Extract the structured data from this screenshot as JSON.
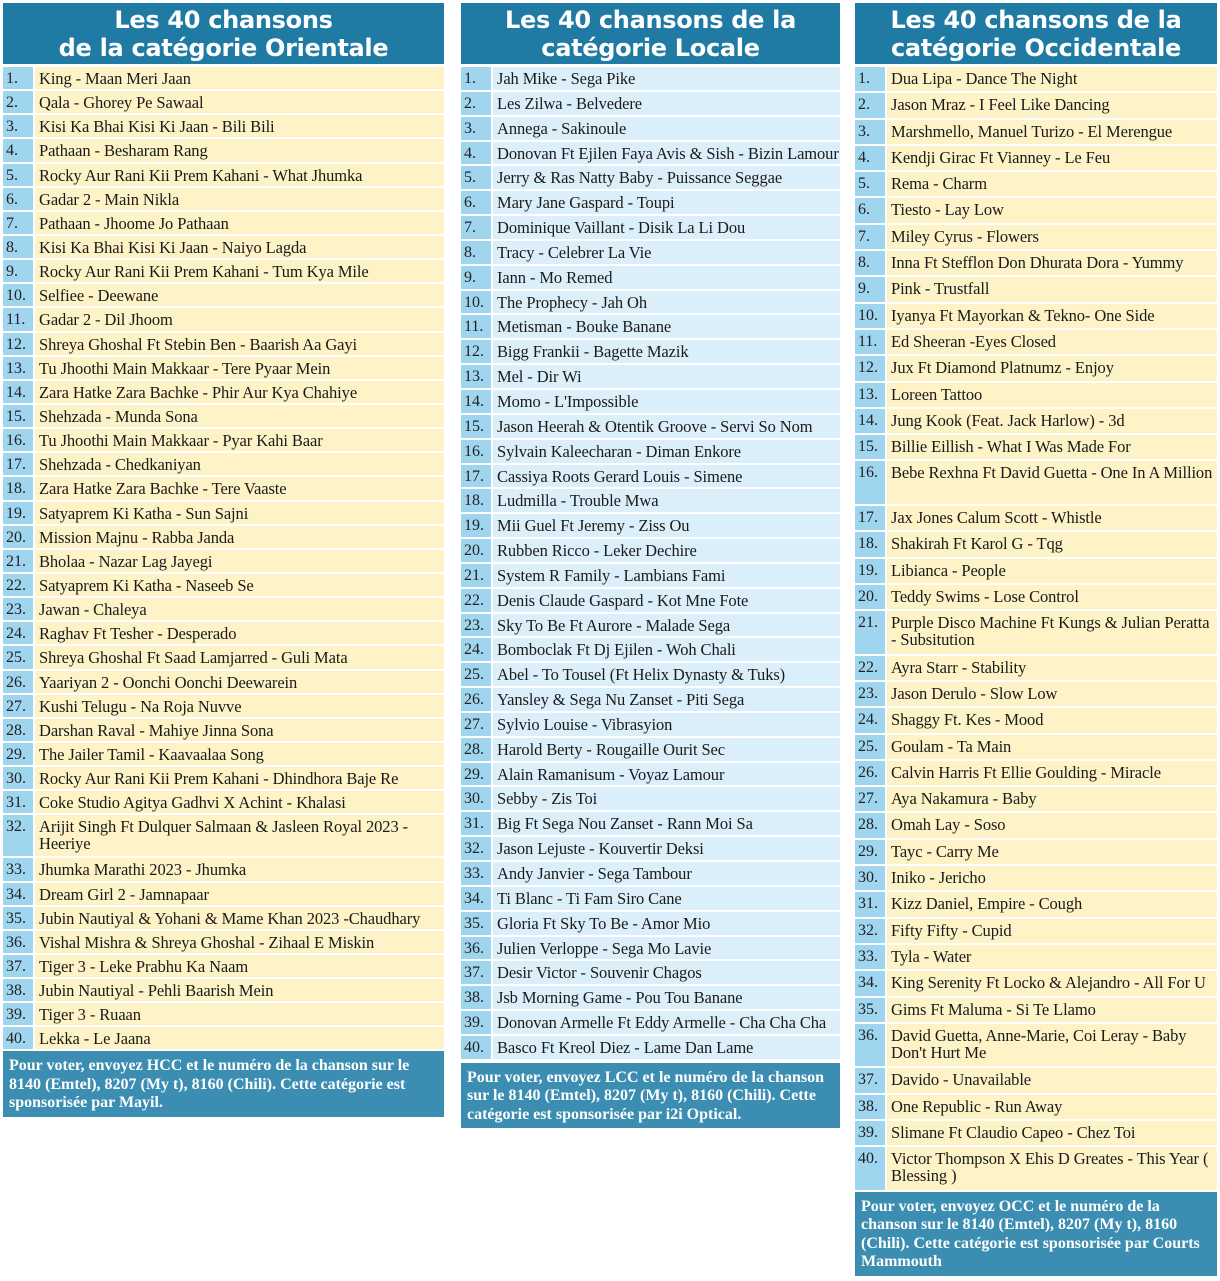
{
  "columns": [
    {
      "title_line1": "Les 40 chansons",
      "title_line2": "de la catégorie Orientale",
      "theme_color": "#fdf3c6",
      "songs": [
        "King - Maan Meri Jaan",
        "Qala - Ghorey Pe Sawaal",
        "Kisi Ka Bhai Kisi Ki Jaan - Bili Bili",
        "Pathaan - Besharam Rang",
        "Rocky Aur Rani Kii Prem Kahani - What Jhumka",
        "Gadar 2 - Main Nikla",
        "Pathaan - Jhoome Jo Pathaan",
        "Kisi Ka Bhai Kisi Ki Jaan - Naiyo Lagda",
        "Rocky Aur Rani Kii Prem Kahani - Tum Kya Mile",
        "Selfiee - Deewane",
        "Gadar 2 - Dil Jhoom",
        "Shreya Ghoshal Ft Stebin Ben - Baarish Aa Gayi",
        "Tu Jhoothi Main Makkaar - Tere Pyaar Mein",
        "Zara Hatke Zara Bachke - Phir Aur Kya Chahiye",
        "Shehzada - Munda Sona",
        "Tu Jhoothi Main Makkaar - Pyar Kahi Baar",
        "Shehzada - Chedkaniyan",
        "Zara Hatke Zara Bachke - Tere Vaaste",
        "Satyaprem Ki Katha - Sun Sajni",
        "Mission Majnu - Rabba Janda",
        "Bholaa - Nazar Lag Jayegi",
        "Satyaprem Ki Katha - Naseeb Se",
        "Jawan - Chaleya",
        "Raghav Ft Tesher - Desperado",
        "Shreya Ghoshal Ft Saad Lamjarred - Guli Mata",
        "Yaariyan 2 - Oonchi Oonchi Deewarein",
        "Kushi Telugu - Na Roja Nuvve",
        "Darshan Raval - Mahiye Jinna Sona",
        "The Jailer Tamil - Kaavaalaa Song",
        "Rocky Aur Rani Kii Prem Kahani - Dhindhora Baje Re",
        "Coke Studio Agitya Gadhvi X Achint - Khalasi",
        "Arijit Singh Ft Dulquer Salmaan & Jasleen Royal 2023 - Heeriye",
        "Jhumka Marathi 2023 - Jhumka",
        "Dream Girl 2 - Jamnapaar",
        "Jubin Nautiyal & Yohani & Mame Khan 2023 -Chaudhary",
        "Vishal Mishra & Shreya Ghoshal - Zihaal E Miskin",
        "Tiger 3 - Leke Prabhu Ka Naam",
        "Jubin Nautiyal - Pehli Baarish Mein",
        "Tiger 3 - Ruaan",
        "Lekka - Le Jaana"
      ],
      "footer": "Pour voter, envoyez HCC et le numéro de la chanson sur le 8140 (Emtel), 8207 (My t), 8160 (Chili). Cette catégorie est sponsorisée par Mayil."
    },
    {
      "title_line1": "Les 40 chansons de la",
      "title_line2": "catégorie Locale",
      "theme_color": "#dbeffa",
      "songs": [
        "Jah Mike - Sega Pike",
        "Les Zilwa - Belvedere",
        "Annega - Sakinoule",
        "Donovan Ft Ejilen Faya Avis & Sish - Bizin Lamour",
        "Jerry & Ras Natty Baby - Puissance Seggae",
        "Mary Jane Gaspard - Toupi",
        "Dominique Vaillant - Disik La Li Dou",
        "Tracy - Celebrer La Vie",
        "Iann - Mo Remed",
        "The Prophecy - Jah Oh",
        "Metisman - Bouke Banane",
        "Bigg Frankii - Bagette Mazik",
        "Mel - Dir Wi",
        "Momo - L'Impossible",
        "Jason Heerah & Otentik Groove - Servi So Nom",
        "Sylvain Kaleecharan - Diman Enkore",
        "Cassiya Roots Gerard Louis - Simene",
        "Ludmilla - Trouble Mwa",
        "Mii Guel Ft Jeremy - Ziss Ou",
        "Rubben Ricco - Leker Dechire",
        "System R Family - Lambians Fami",
        "Denis Claude Gaspard - Kot Mne Fote",
        "Sky To Be Ft Aurore - Malade Sega",
        "Bomboclak Ft Dj Ejilen - Woh Chali",
        "Abel - To Tousel (Ft Helix Dynasty & Tuks)",
        "Yansley & Sega Nu Zanset - Piti Sega",
        "Sylvio Louise - Vibrasyion",
        "Harold Berty - Rougaille Ourit Sec",
        "Alain Ramanisum - Voyaz Lamour",
        "Sebby - Zis Toi",
        "Big Ft Sega Nou Zanset - Rann Moi Sa",
        "Jason Lejuste - Kouvertir Deksi",
        "Andy Janvier - Sega Tambour",
        "Ti Blanc - Ti Fam Siro Cane",
        "Gloria Ft Sky To Be - Amor Mio",
        "Julien Verloppe - Sega Mo Lavie",
        "Desir Victor - Souvenir Chagos",
        "Jsb Morning Game - Pou Tou Banane",
        "Donovan Armelle Ft Eddy Armelle - Cha Cha Cha",
        "Basco Ft Kreol Diez - Lame Dan Lame"
      ],
      "footer": "Pour voter, envoyez LCC et le numéro de la chanson sur le 8140 (Emtel), 8207 (My t), 8160 (Chili). Cette catégorie est sponsorisée par i2i Optical."
    },
    {
      "title_line1": "Les 40 chansons de la",
      "title_line2": "catégorie Occidentale",
      "theme_color": "#fdf3c6",
      "songs": [
        "Dua Lipa - Dance The Night",
        "Jason Mraz - I Feel Like Dancing",
        "Marshmello, Manuel Turizo - El Merengue",
        "Kendji Girac Ft Vianney - Le Feu",
        "Rema - Charm",
        "Tiesto - Lay Low",
        "Miley Cyrus - Flowers",
        "Inna Ft Stefflon Don Dhurata Dora - Yummy",
        "Pink - Trustfall",
        "Iyanya Ft Mayorkan & Tekno- One Side",
        "Ed Sheeran -Eyes Closed",
        "Jux Ft Diamond Platnumz - Enjoy",
        "Loreen Tattoo",
        "Jung Kook (Feat. Jack Harlow) - 3d",
        "Billie Eillish - What I Was Made For",
        "Bebe Rexhna Ft David Guetta - One In A Million",
        "Jax Jones Calum Scott - Whistle",
        "Shakirah Ft Karol G - Tqg",
        "Libianca - People",
        "Teddy Swims - Lose Control",
        "Purple Disco Machine Ft Kungs & Julian Peratta - Subsitution",
        "Ayra Starr - Stability",
        "Jason Derulo - Slow Low",
        "Shaggy Ft. Kes - Mood",
        "Goulam - Ta Main",
        "Calvin Harris Ft Ellie Goulding - Miracle",
        "Aya Nakamura - Baby",
        "Omah Lay - Soso",
        "Tayc - Carry Me",
        "Iniko - Jericho",
        "Kizz Daniel, Empire - Cough",
        "Fifty Fifty - Cupid",
        "Tyla - Water",
        "King Serenity Ft Locko & Alejandro - All For U",
        "Gims Ft Maluma - Si Te Llamo",
        "David Guetta, Anne-Marie, Coi Leray - Baby Don't Hurt Me",
        "Davido - Unavailable",
        "One Republic - Run Away",
        "Slimane Ft Claudio Capeo - Chez Toi",
        "Victor Thompson X Ehis D Greates - This Year ( Blessing )"
      ],
      "footer": "Pour voter, envoyez OCC et le numéro de la chanson sur le 8140 (Emtel), 8207 (My t), 8160 (Chili). Cette catégorie est sponsorisée par Courts Mammouth"
    }
  ]
}
